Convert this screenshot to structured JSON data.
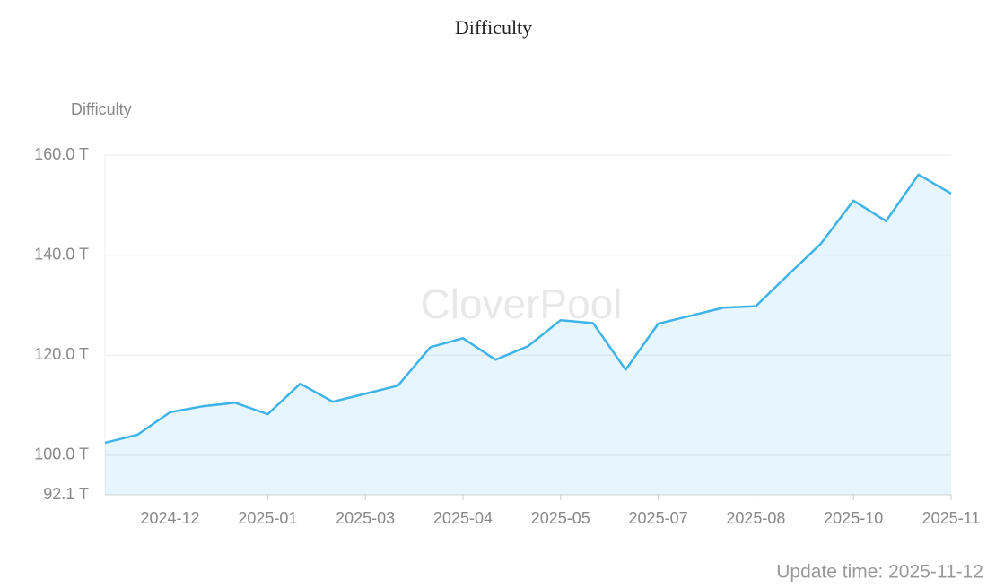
{
  "chart_data": {
    "type": "line",
    "title": "Difficulty",
    "y_label": "Difficulty",
    "watermark": "CloverPool",
    "footer": "Update time: 2025-11-12",
    "categories": [
      null,
      null,
      "2024-12",
      null,
      null,
      "2025-01",
      null,
      null,
      "2025-03",
      null,
      null,
      "2025-04",
      null,
      null,
      "2025-05",
      null,
      null,
      "2025-07",
      null,
      null,
      "2025-08",
      null,
      null,
      "2025-10",
      null,
      null,
      "2025-11"
    ],
    "series": [
      {
        "name": "Difficulty",
        "color": "#3db3ea",
        "values": [
          102.5,
          104.1,
          108.6,
          109.8,
          110.5,
          108.2,
          114.3,
          110.7,
          112.3,
          113.9,
          121.6,
          123.4,
          119.1,
          121.8,
          127.0,
          126.4,
          117.1,
          126.3,
          127.9,
          129.5,
          129.8,
          136.1,
          142.3,
          150.9,
          146.8,
          156.1,
          152.3
        ]
      }
    ],
    "ylim": [
      92.1,
      160
    ],
    "yticks": [
      {
        "value": 92.1,
        "label": "92.1 T"
      },
      {
        "value": 100,
        "label": "100.0 T"
      },
      {
        "value": 120,
        "label": "120.0 T"
      },
      {
        "value": 140,
        "label": "140.0 T"
      },
      {
        "value": 160,
        "label": "160.0 T"
      }
    ],
    "grid": true,
    "area": true
  }
}
